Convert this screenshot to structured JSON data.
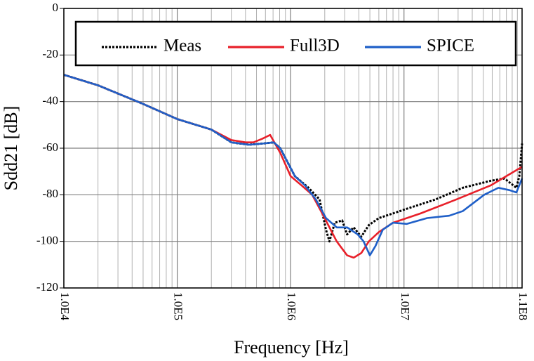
{
  "chart_data": {
    "type": "line",
    "x_label": "Frequency [Hz]",
    "y_label": "Sdd21 [dB]",
    "xscale": "log",
    "xlim": [
      10000,
      110000000
    ],
    "xticks": [
      {
        "value": 10000,
        "label": "1.0E4"
      },
      {
        "value": 100000,
        "label": "1.0E5"
      },
      {
        "value": 1000000,
        "label": "1.0E6"
      },
      {
        "value": 10000000,
        "label": "1.0E7"
      },
      {
        "value": 110000000,
        "label": "1.1E8"
      }
    ],
    "xminorticks": [
      20000,
      30000,
      40000,
      50000,
      60000,
      70000,
      80000,
      90000,
      200000,
      300000,
      400000,
      500000,
      600000,
      700000,
      800000,
      900000,
      2000000,
      3000000,
      4000000,
      5000000,
      6000000,
      7000000,
      8000000,
      9000000,
      20000000,
      30000000,
      40000000,
      50000000,
      60000000,
      70000000,
      80000000,
      90000000,
      100000000
    ],
    "ylim": [
      -120,
      0
    ],
    "yticks": [
      0,
      -20,
      -40,
      -60,
      -80,
      -100,
      -120
    ],
    "grid": true,
    "legend": "upper center",
    "series": [
      {
        "name": "Meas",
        "color": "#000000",
        "line_style": "dotted",
        "x": [
          10000,
          20000,
          50000,
          100000,
          200000,
          300000,
          430000,
          570000,
          710000,
          810000,
          940000,
          1090000,
          1440000,
          1800000,
          2050000,
          2200000,
          2450000,
          2850000,
          3150000,
          3600000,
          4200000,
          4900000,
          6000000,
          8000000,
          10600000,
          19000000,
          33000000,
          58000000,
          77000000,
          98000000,
          104000000,
          110000000
        ],
        "values": [
          -28.5,
          -33,
          -41,
          -47.5,
          -52,
          -57.5,
          -58.5,
          -58,
          -57.5,
          -60,
          -66,
          -72,
          -77,
          -82,
          -95,
          -100,
          -92,
          -91,
          -97,
          -94,
          -98,
          -93,
          -90,
          -88,
          -86,
          -82,
          -77,
          -74,
          -73,
          -77,
          -72,
          -58
        ]
      },
      {
        "name": "Full3D",
        "color": "#e8202a",
        "line_style": "solid",
        "x": [
          10000,
          20000,
          50000,
          100000,
          200000,
          300000,
          400000,
          470000,
          560000,
          660000,
          810000,
          1000000,
          1250000,
          1550000,
          1900000,
          2200000,
          2550000,
          3150000,
          3600000,
          4200000,
          4900000,
          6000000,
          8000000,
          9900000,
          14000000,
          29000000,
          58000000,
          110000000
        ],
        "values": [
          -28.5,
          -33,
          -41,
          -47.5,
          -52,
          -56.5,
          -57.5,
          -57.5,
          -56,
          -54.3,
          -62,
          -72,
          -76,
          -80,
          -88,
          -94,
          -100,
          -106,
          -107,
          -105,
          -100,
          -96,
          -92,
          -90.5,
          -88,
          -82,
          -76,
          -68
        ]
      },
      {
        "name": "SPICE",
        "color": "#1f5fc8",
        "line_style": "solid",
        "x": [
          10000,
          20000,
          50000,
          100000,
          200000,
          300000,
          430000,
          570000,
          710000,
          810000,
          940000,
          1090000,
          1340000,
          1670000,
          2050000,
          2550000,
          3150000,
          3900000,
          4400000,
          5000000,
          5600000,
          6500000,
          8000000,
          10600000,
          16000000,
          25000000,
          33000000,
          51000000,
          68000000,
          85000000,
          98000000,
          110000000
        ],
        "values": [
          -28.5,
          -33,
          -41,
          -47.5,
          -52,
          -57.5,
          -58.5,
          -58,
          -57.5,
          -60,
          -66,
          -72,
          -76,
          -82,
          -90,
          -94,
          -94,
          -97,
          -100,
          -106,
          -102,
          -95,
          -92,
          -92.5,
          -90,
          -89,
          -87,
          -80,
          -77,
          -78,
          -79,
          -73
        ]
      }
    ]
  }
}
